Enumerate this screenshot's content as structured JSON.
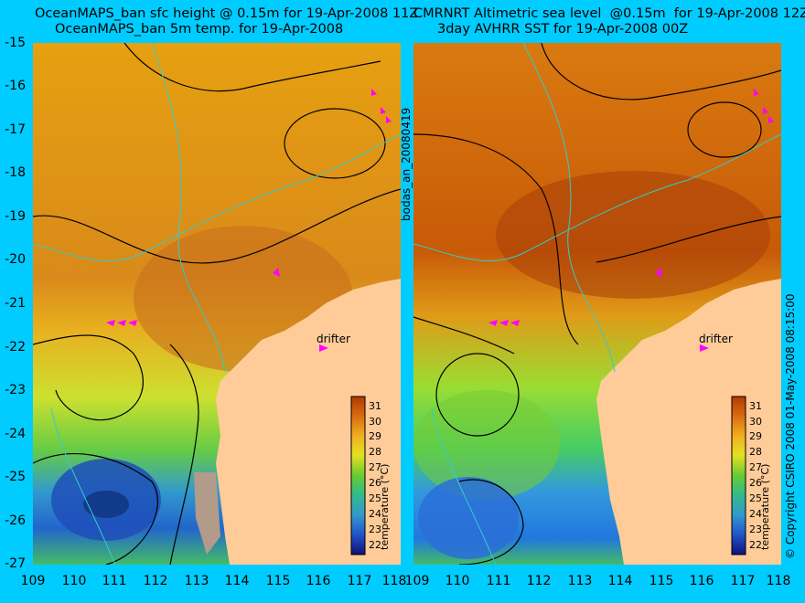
{
  "left_title_line1": "OceanMAPS_ban sfc height @ 0.15m for 19-Apr-2008 11Z",
  "left_title_line2": "OceanMAPS_ban 5m temp. for 19-Apr-2008",
  "right_title_line1": "CMRNRT Altimetric sea level  @0.15m  for 19-Apr-2008 12Z",
  "right_title_line2": "3day AVHRR SST for 19-Apr-2008 00Z",
  "middle_label": "bodas_an_20080419",
  "right_side_label": "© Copyright CSIRO 2008  01-May-2008 08:15:00",
  "y_axis_labels": [
    "-15",
    "-16",
    "-17",
    "-18",
    "-19",
    "-20",
    "-21",
    "-22",
    "-23",
    "-24",
    "-25",
    "-26",
    "-27"
  ],
  "x_axis_labels": [
    "109",
    "110",
    "111",
    "112",
    "113",
    "114",
    "115",
    "116",
    "117",
    "118"
  ],
  "colorbar": {
    "title": "temperature (°C)",
    "ticks": [
      "31",
      "30",
      "29",
      "28",
      "27",
      "26",
      "25",
      "24",
      "23",
      "22"
    ],
    "range": [
      21,
      31.5
    ]
  },
  "drifter_label": "drifter",
  "colors": {
    "background": "#00ccff",
    "land": "#ffcc99",
    "contour": "#000000",
    "isobath": "#33cccc",
    "drifter_track": "#ff00ff"
  },
  "map": {
    "lon_range": [
      109,
      118
    ],
    "lat_range": [
      -27,
      -15
    ]
  }
}
